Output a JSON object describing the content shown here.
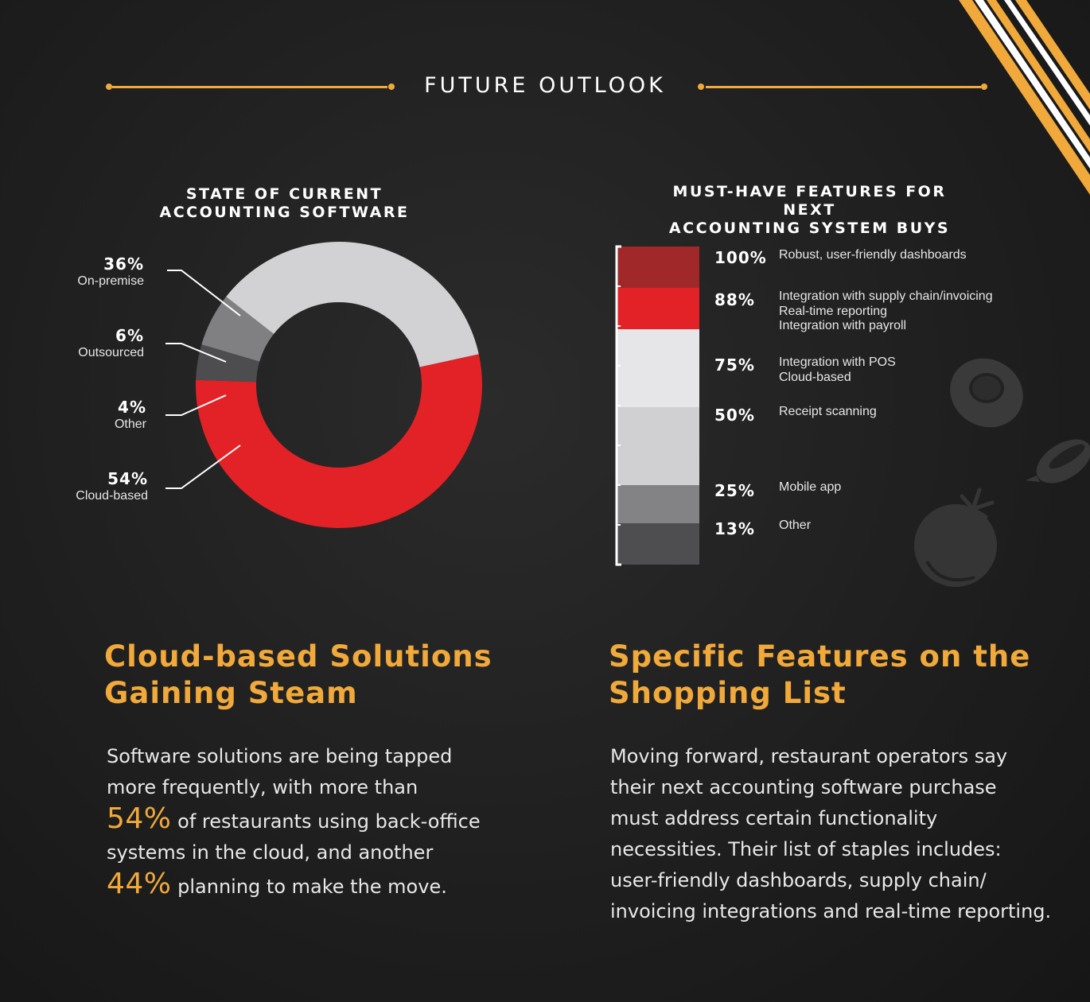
{
  "header": {
    "title": "FUTURE OUTLOOK",
    "accent_color": "#f0a93a"
  },
  "chart_data": [
    {
      "type": "pie",
      "title": "STATE OF CURRENT ACCOUNTING SOFTWARE",
      "title_lines": [
        "STATE OF CURRENT",
        "ACCOUNTING SOFTWARE"
      ],
      "slices": [
        {
          "label": "On-premise",
          "value": 36,
          "display": "36%",
          "color": "#d2d2d4"
        },
        {
          "label": "Cloud-based",
          "value": 54,
          "display": "54%",
          "color": "#e32227"
        },
        {
          "label": "Other",
          "value": 4,
          "display": "4%",
          "color": "#4d4d4f"
        },
        {
          "label": "Outsourced",
          "value": 6,
          "display": "6%",
          "color": "#808083"
        }
      ],
      "label_order": [
        "On-premise",
        "Outsourced",
        "Other",
        "Cloud-based"
      ]
    },
    {
      "type": "bar",
      "title": "MUST-HAVE FEATURES FOR NEXT ACCOUNTING SYSTEM BUYS",
      "title_lines": [
        "MUST-HAVE FEATURES FOR NEXT",
        "ACCOUNTING SYSTEM BUYS"
      ],
      "ylim": [
        0,
        100
      ],
      "bands": [
        {
          "value": 100,
          "display": "100%",
          "labels": [
            "Robust, user-friendly dashboards"
          ],
          "color": "#a12828"
        },
        {
          "value": 88,
          "display": "88%",
          "labels": [
            "Integration with supply chain/invoicing",
            "Real-time reporting",
            "Integration with payroll"
          ],
          "color": "#e32227"
        },
        {
          "value": 75,
          "display": "75%",
          "labels": [
            "Integration with POS",
            "Cloud-based"
          ],
          "color": "#e6e6e8"
        },
        {
          "value": 50,
          "display": "50%",
          "labels": [
            "Receipt scanning"
          ],
          "color": "#d0d0d2"
        },
        {
          "value": 25,
          "display": "25%",
          "labels": [
            "Mobile app"
          ],
          "color": "#838386"
        },
        {
          "value": 13,
          "display": "13%",
          "labels": [
            "Other"
          ],
          "color": "#4e4e50"
        }
      ]
    }
  ],
  "left_section": {
    "heading_lines": [
      "Cloud-based Solutions",
      "Gaining Steam"
    ],
    "line1": "Software solutions are being tapped",
    "line2": "more frequently, with more than",
    "highlight1": "54%",
    "line3": " of restaurants using back-office",
    "line4": "systems in the cloud, and another",
    "highlight2": "44%",
    "line5": " planning to make the move."
  },
  "right_section": {
    "heading_lines": [
      "Specific Features on the",
      "Shopping List"
    ],
    "body_lines": [
      "Moving forward, restaurant operators say",
      "their next accounting software purchase",
      "must address certain functionality",
      "necessities. Their list of staples includes:",
      "user-friendly dashboards, supply chain/",
      "invoicing integrations and real-time reporting."
    ]
  },
  "decor": {
    "icons": [
      "avocado-icon",
      "eggplant-icon",
      "tomato-icon",
      "corner-stripes"
    ]
  }
}
